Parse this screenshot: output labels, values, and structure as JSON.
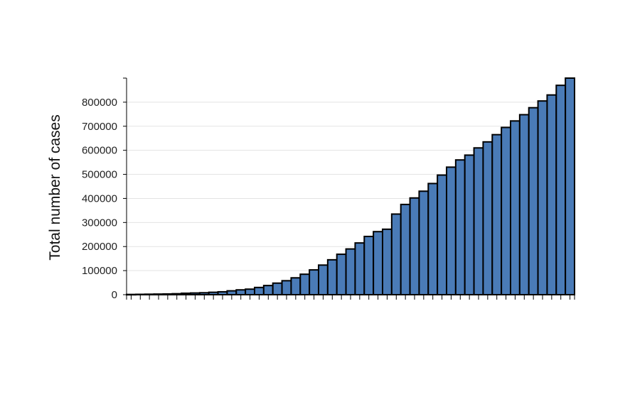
{
  "chart_data": {
    "type": "bar",
    "ylabel": "Total number of cases",
    "xlabel": "",
    "title": "",
    "ylim": [
      0,
      900000
    ],
    "y_ticks": [
      0,
      100000,
      200000,
      300000,
      400000,
      500000,
      600000,
      700000,
      800000
    ],
    "y_tick_labels": [
      "0",
      "100000",
      "200000",
      "300000",
      "400000",
      "500000",
      "600000",
      "700000",
      "800000"
    ],
    "grid": "horizontal",
    "bar_color": "#4a7bb7",
    "bar_outline_color": "#000000",
    "values": [
      1000,
      1500,
      2000,
      2500,
      3000,
      4000,
      6000,
      7000,
      8000,
      10000,
      12000,
      16000,
      20000,
      23000,
      30000,
      38000,
      48000,
      58000,
      70000,
      85000,
      103000,
      123000,
      145000,
      168000,
      190000,
      215000,
      242000,
      262000,
      272000,
      335000,
      375000,
      402000,
      430000,
      462000,
      497000,
      530000,
      560000,
      580000,
      610000,
      635000,
      665000,
      695000,
      722000,
      748000,
      777000,
      805000,
      830000,
      870000,
      900000
    ]
  }
}
